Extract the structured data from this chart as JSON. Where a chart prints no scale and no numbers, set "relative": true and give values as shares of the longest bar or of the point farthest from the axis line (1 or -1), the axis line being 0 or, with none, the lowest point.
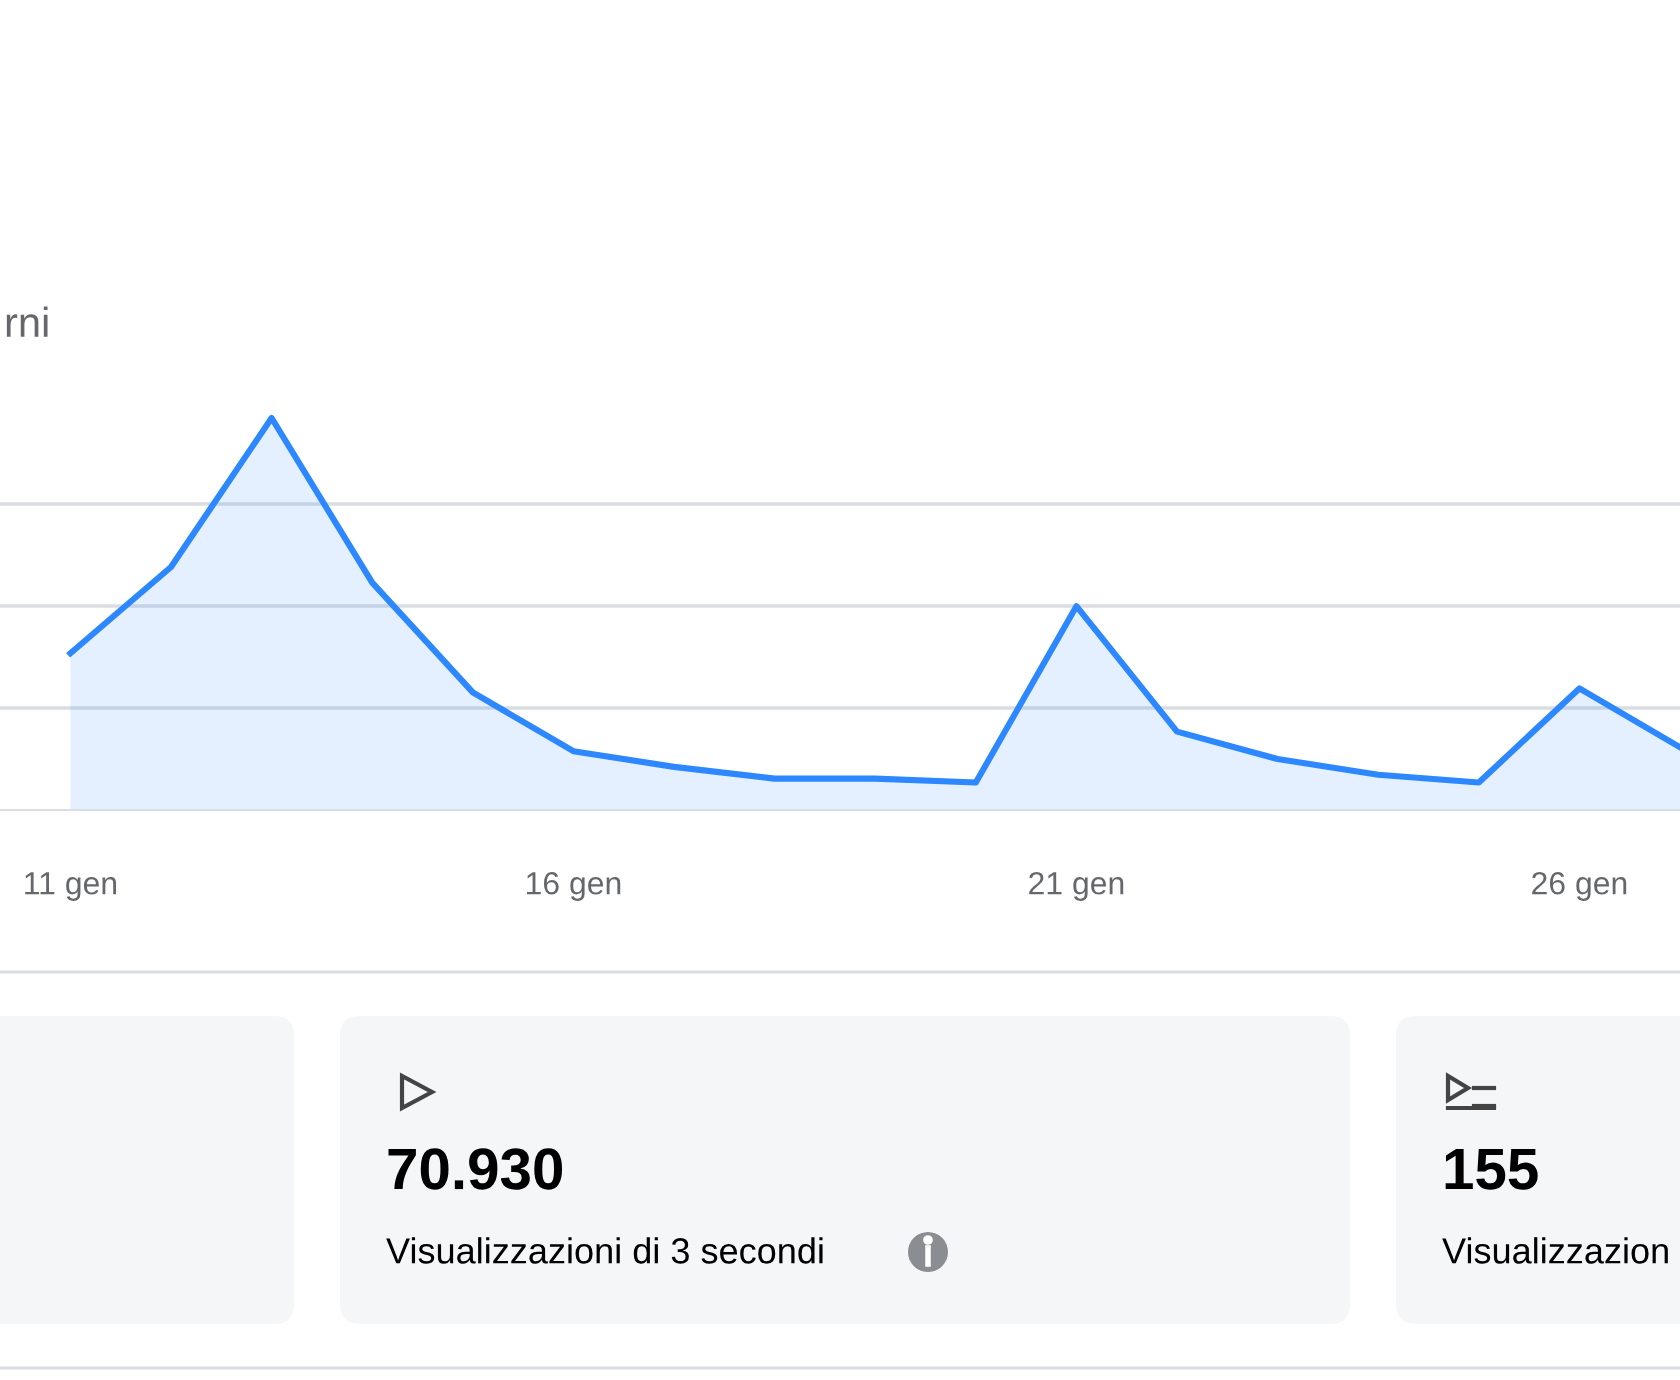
{
  "chart_data": [
    {
      "type": "area",
      "subtitle": "rni",
      "relative": true,
      "color": "#2d88ff",
      "grid": "y",
      "x": [
        11,
        12,
        13,
        14,
        15,
        16,
        17,
        18,
        19,
        20,
        21,
        22,
        23,
        24,
        25,
        26,
        27
      ],
      "values": [
        0.4,
        0.62,
        1.0,
        0.58,
        0.3,
        0.15,
        0.11,
        0.08,
        0.08,
        0.07,
        0.52,
        0.2,
        0.13,
        0.09,
        0.07,
        0.31,
        0.16
      ],
      "xlim": [
        10.3,
        27.0
      ],
      "xticks": [
        {
          "value": 11,
          "label": "11 gen"
        },
        {
          "value": 16,
          "label": "16 gen"
        },
        {
          "value": 21,
          "label": "21 gen"
        },
        {
          "value": 26,
          "label": "26 gen"
        }
      ]
    },
    {
      "type": "other",
      "annotations": [
        "70.930",
        "Visualizzazioni di 3 secondi",
        "155",
        "Visualizzazion"
      ]
    }
  ]
}
